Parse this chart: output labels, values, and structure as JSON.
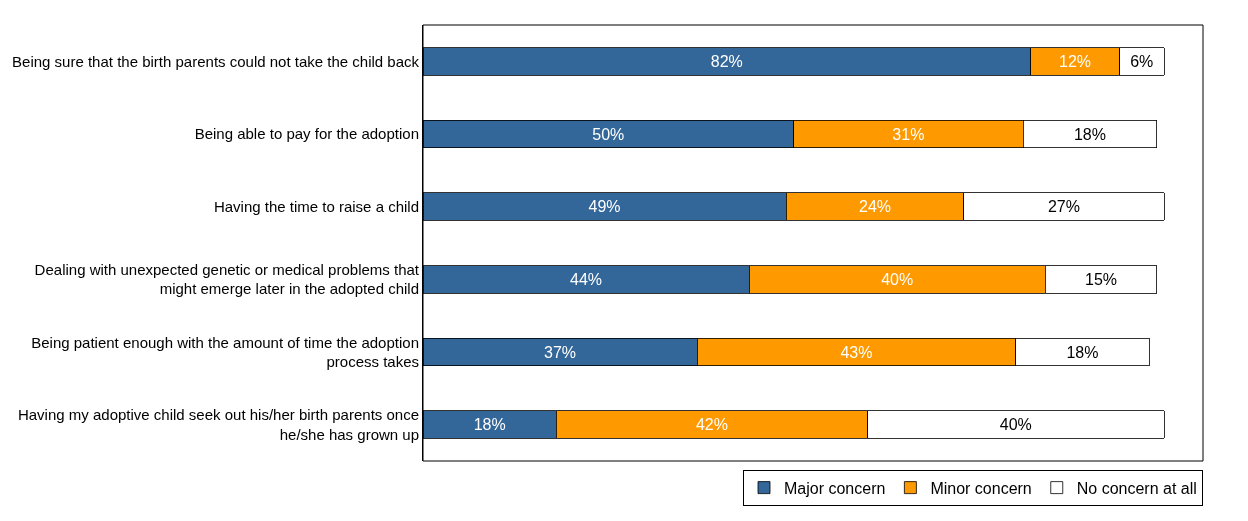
{
  "chart_data": {
    "type": "bar",
    "orientation": "horizontal",
    "stacked": true,
    "legend": "bottom right",
    "categories": [
      "Being sure that the birth parents could not take the child back",
      "Being able to pay for the adoption",
      "Having the time to raise a child",
      "Dealing with unexpected genetic or medical problems that might emerge later in the adopted child",
      "Being patient enough with the amount of time the adoption process takes",
      "Having my adoptive child seek out his/her birth parents once he/she has grown up"
    ],
    "series": [
      {
        "name": "Major concern",
        "color": "#336699",
        "values": [
          82,
          50,
          49,
          44,
          37,
          18
        ],
        "value_labels": [
          "82%",
          "50%",
          "49%",
          "44%",
          "37%",
          "18%"
        ]
      },
      {
        "name": "Minor concern",
        "color": "#ff9900",
        "values": [
          12,
          31,
          24,
          40,
          43,
          42
        ],
        "value_labels": [
          "12%",
          "31%",
          "24%",
          "40%",
          "43%",
          "42%"
        ]
      },
      {
        "name": "No concern at all",
        "color": "#ffffff",
        "values": [
          6,
          18,
          27,
          15,
          18,
          40
        ],
        "value_labels": [
          "6%",
          "18%",
          "27%",
          "15%",
          "18%",
          "40%"
        ]
      }
    ]
  }
}
